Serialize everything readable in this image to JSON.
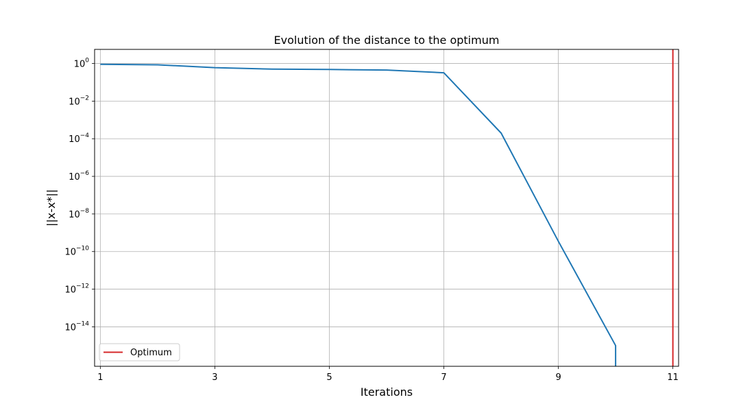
{
  "chart_data": {
    "type": "line",
    "title": "Evolution of the distance to the optimum",
    "xlabel": "Iterations",
    "ylabel": "||x-x*||",
    "yscale": "log",
    "xlim": [
      0.9,
      11.1
    ],
    "ylim_log10": [
      -16.1,
      0.75
    ],
    "grid": true,
    "legend_position": "bottom-left",
    "x_ticks": [
      1,
      3,
      5,
      7,
      9,
      11
    ],
    "y_ticks": [
      {
        "exp": 0,
        "base": "10",
        "sup": "0"
      },
      {
        "exp": -2,
        "base": "10",
        "sup": "−2"
      },
      {
        "exp": -4,
        "base": "10",
        "sup": "−4"
      },
      {
        "exp": -6,
        "base": "10",
        "sup": "−6"
      },
      {
        "exp": -8,
        "base": "10",
        "sup": "−8"
      },
      {
        "exp": -10,
        "base": "10",
        "sup": "−10"
      },
      {
        "exp": -12,
        "base": "10",
        "sup": "−12"
      },
      {
        "exp": -14,
        "base": "10",
        "sup": "−14"
      }
    ],
    "series": [
      {
        "color": "#1f77b4",
        "x": [
          1,
          2,
          3,
          4,
          5,
          6,
          7,
          8,
          9,
          10,
          10
        ],
        "y": [
          0.9,
          0.85,
          0.6,
          0.5,
          0.48,
          0.45,
          0.32,
          0.0002,
          3.5e-10,
          1e-15,
          0
        ]
      }
    ],
    "vlines": [
      {
        "name": "Optimum",
        "x": 11,
        "color": "#d62728"
      }
    ],
    "legend": [
      {
        "label": "Optimum",
        "color": "#d62728"
      }
    ]
  }
}
